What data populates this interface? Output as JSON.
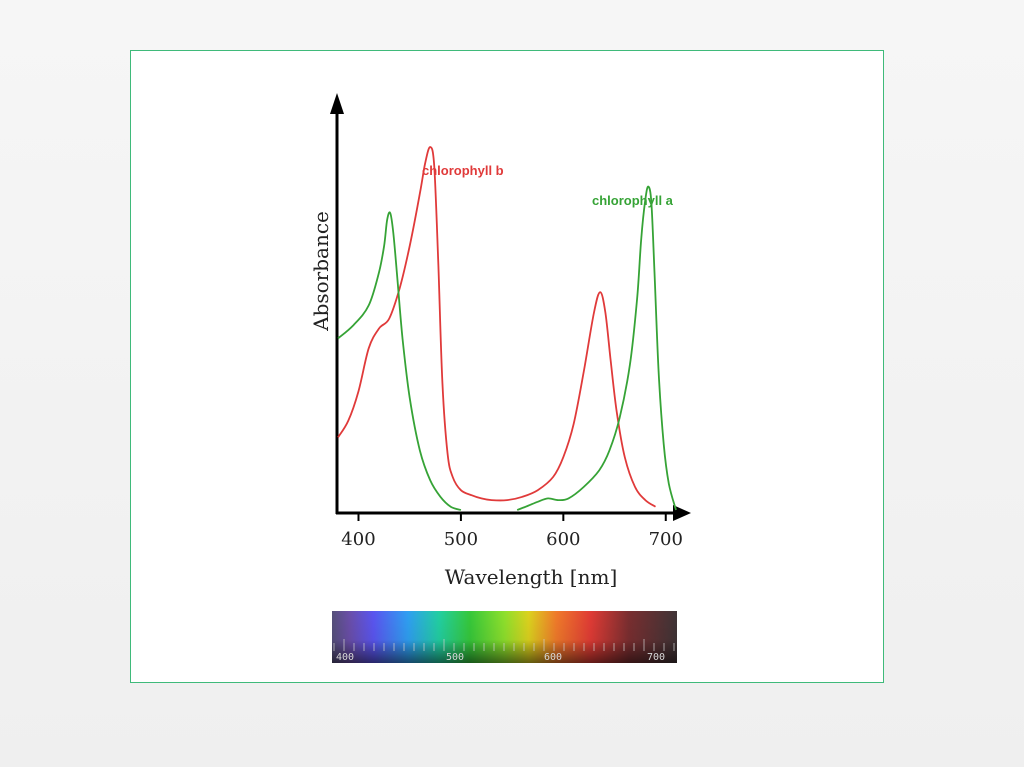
{
  "chart_data": {
    "type": "line",
    "xlabel": "Wavelength [nm]",
    "ylabel": "Absorbance",
    "xticks": [
      400,
      500,
      600,
      700
    ],
    "xlim": [
      380,
      710
    ],
    "ylim": [
      0,
      1.1
    ],
    "grid": false,
    "legend": "inline labels near peaks",
    "series": [
      {
        "name": "chlorophyll b",
        "color": "#e03a3a",
        "points": [
          [
            380,
            0.22
          ],
          [
            390,
            0.27
          ],
          [
            400,
            0.36
          ],
          [
            410,
            0.49
          ],
          [
            420,
            0.55
          ],
          [
            430,
            0.58
          ],
          [
            440,
            0.67
          ],
          [
            450,
            0.8
          ],
          [
            460,
            0.96
          ],
          [
            465,
            1.05
          ],
          [
            470,
            1.1
          ],
          [
            474,
            1.04
          ],
          [
            478,
            0.74
          ],
          [
            482,
            0.38
          ],
          [
            487,
            0.17
          ],
          [
            492,
            0.1
          ],
          [
            500,
            0.06
          ],
          [
            510,
            0.045
          ],
          [
            520,
            0.035
          ],
          [
            530,
            0.03
          ],
          [
            545,
            0.03
          ],
          [
            560,
            0.04
          ],
          [
            575,
            0.06
          ],
          [
            590,
            0.1
          ],
          [
            600,
            0.16
          ],
          [
            610,
            0.26
          ],
          [
            620,
            0.42
          ],
          [
            630,
            0.6
          ],
          [
            636,
            0.66
          ],
          [
            641,
            0.6
          ],
          [
            646,
            0.46
          ],
          [
            652,
            0.3
          ],
          [
            660,
            0.16
          ],
          [
            670,
            0.07
          ],
          [
            680,
            0.03
          ],
          [
            690,
            0.01
          ]
        ]
      },
      {
        "name": "chlorophyll a",
        "color": "#36a336",
        "points": [
          [
            380,
            0.52
          ],
          [
            395,
            0.56
          ],
          [
            410,
            0.62
          ],
          [
            420,
            0.72
          ],
          [
            425,
            0.8
          ],
          [
            428,
            0.88
          ],
          [
            431,
            0.9
          ],
          [
            434,
            0.84
          ],
          [
            438,
            0.7
          ],
          [
            443,
            0.52
          ],
          [
            450,
            0.34
          ],
          [
            460,
            0.18
          ],
          [
            470,
            0.09
          ],
          [
            480,
            0.04
          ],
          [
            490,
            0.01
          ],
          [
            500,
            0.0
          ],
          null,
          [
            555,
            0.0
          ],
          [
            565,
            0.012
          ],
          [
            575,
            0.025
          ],
          [
            585,
            0.035
          ],
          [
            595,
            0.03
          ],
          [
            605,
            0.035
          ],
          [
            620,
            0.07
          ],
          [
            635,
            0.12
          ],
          [
            645,
            0.18
          ],
          [
            655,
            0.28
          ],
          [
            665,
            0.44
          ],
          [
            672,
            0.64
          ],
          [
            676,
            0.82
          ],
          [
            680,
            0.94
          ],
          [
            683,
            0.98
          ],
          [
            686,
            0.93
          ],
          [
            689,
            0.72
          ],
          [
            693,
            0.42
          ],
          [
            698,
            0.2
          ],
          [
            703,
            0.08
          ],
          [
            710,
            0.0
          ]
        ]
      }
    ]
  },
  "spectrum_bar": {
    "labels": [
      "400",
      "500",
      "600",
      "700"
    ]
  }
}
